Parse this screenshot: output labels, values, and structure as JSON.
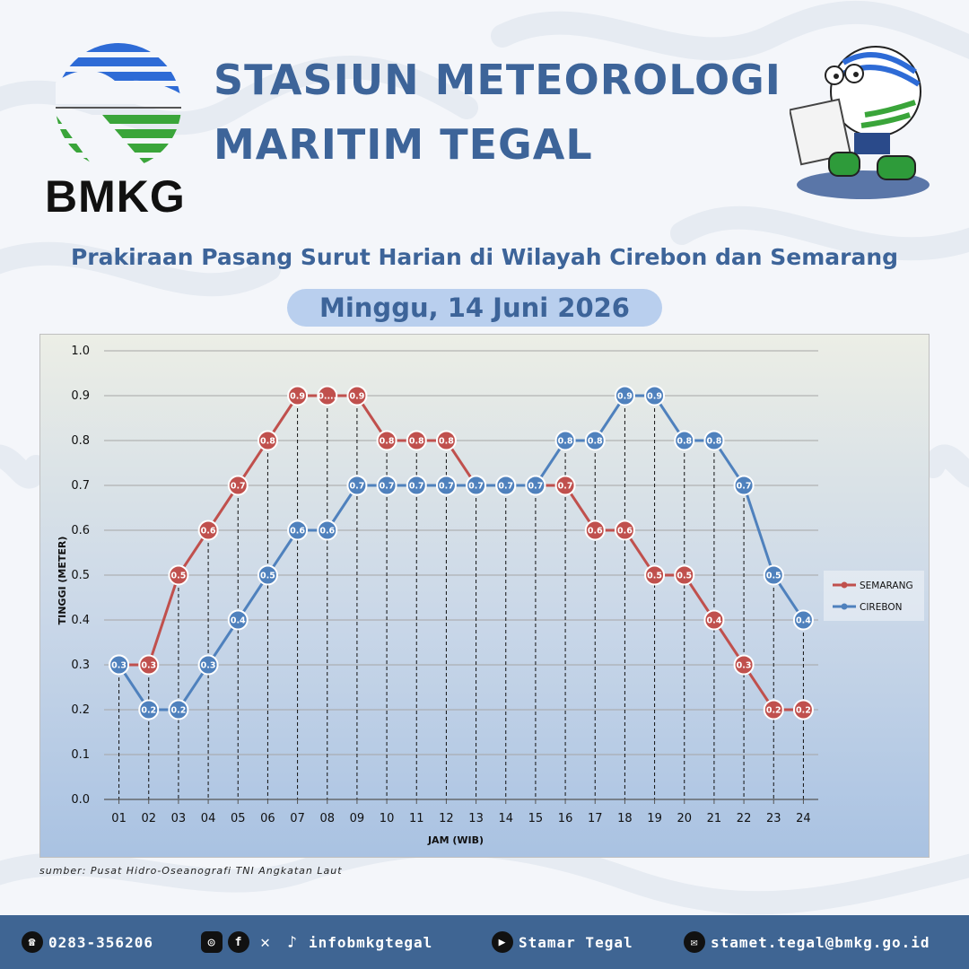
{
  "header": {
    "logo_text": "BMKG",
    "title_line1": "STASIUN METEOROLOGI",
    "title_line2": "MARITIM TEGAL",
    "subtitle": "Prakiraan Pasang Surut Harian di Wilayah Cirebon dan Semarang",
    "date": "Minggu, 14 Juni 2026"
  },
  "chart_data": {
    "type": "line",
    "title": "",
    "xlabel": "JAM (WIB)",
    "ylabel": "TINGGI (METER)",
    "ylim": [
      0,
      1.0
    ],
    "yticks": [
      "0.0",
      "0.1",
      "0.2",
      "0.3",
      "0.4",
      "0.5",
      "0.6",
      "0.7",
      "0.8",
      "0.9",
      "1.0"
    ],
    "categories": [
      "01",
      "02",
      "03",
      "04",
      "05",
      "06",
      "07",
      "08",
      "09",
      "10",
      "11",
      "12",
      "13",
      "14",
      "15",
      "16",
      "17",
      "18",
      "19",
      "20",
      "21",
      "22",
      "23",
      "24"
    ],
    "series": [
      {
        "name": "SEMARANG",
        "color": "#c0504d",
        "values": [
          0.3,
          0.3,
          0.5,
          0.6,
          0.7,
          0.8,
          0.9,
          0.9,
          0.9,
          0.8,
          0.8,
          0.8,
          0.7,
          0.7,
          0.7,
          0.7,
          0.6,
          0.6,
          0.5,
          0.5,
          0.4,
          0.3,
          0.2,
          0.2
        ],
        "labels": [
          "0.3",
          "0.3",
          "0.5",
          "0.6",
          "0.7",
          "0.8",
          "0.9",
          "0....",
          "0.9",
          "0.8",
          "0.8",
          "0.8",
          "0.7",
          "0.7",
          "0.7",
          "0.7",
          "0.6",
          "0.6",
          "0.5",
          "0.5",
          "0.4",
          "0.3",
          "0.2",
          "0.2"
        ]
      },
      {
        "name": "CIREBON",
        "color": "#4f81bd",
        "values": [
          0.3,
          0.2,
          0.2,
          0.3,
          0.4,
          0.5,
          0.6,
          0.6,
          0.7,
          0.7,
          0.7,
          0.7,
          0.7,
          0.7,
          0.7,
          0.8,
          0.8,
          0.9,
          0.9,
          0.8,
          0.8,
          0.7,
          0.5,
          0.4
        ],
        "labels": [
          "0.3",
          "0.2",
          "0.2",
          "0.3",
          "0.4",
          "0.5",
          "0.6",
          "0.6",
          "0.7",
          "0.7",
          "0.7",
          "0.7",
          "0.7",
          "0.7",
          "0.7",
          "0.8",
          "0.8",
          "0.9",
          "0.9",
          "0.8",
          "0.8",
          "0.7",
          "0.5",
          "0.4"
        ]
      }
    ],
    "grid": true,
    "legend": "right"
  },
  "source": "sumber: Pusat Hidro-Oseanografi TNI Angkatan Laut",
  "footer": {
    "phone": "0283-356206",
    "social": "infobmkgtegal",
    "youtube": "Stamar Tegal",
    "email": "stamet.tegal@bmkg.go.id"
  }
}
